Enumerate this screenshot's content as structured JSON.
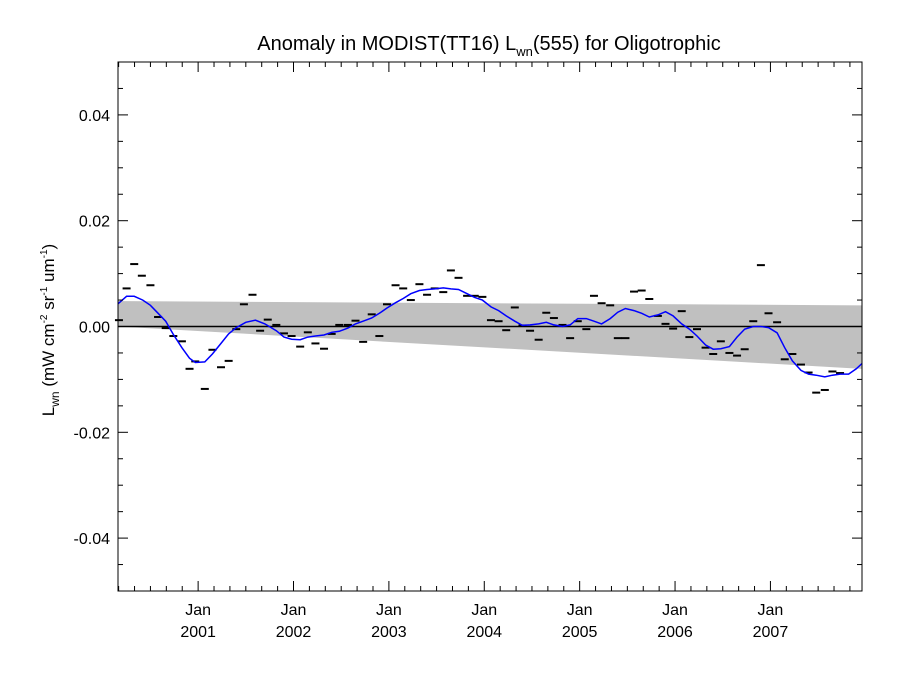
{
  "chart_data": {
    "type": "scatter",
    "title": {
      "main": "Anomaly in MODIST(TT16) L",
      "sub": "wn",
      "rest": "(555) for Oligotrophic"
    },
    "ylabel": {
      "main": "L",
      "sub": "wn",
      "units_pre": " (mW cm",
      "sup1": "-2",
      "units_mid": " sr",
      "sup2": "-1",
      "units_mid2": " um",
      "sup3": "-1",
      "units_post": ")"
    },
    "xlim": [
      2000.16,
      2007.96
    ],
    "ylim": [
      -0.05,
      0.05
    ],
    "y_ticks": [
      0.04,
      0.02,
      0.0,
      -0.02,
      -0.04
    ],
    "y_tick_labels": [
      "0.04",
      "0.02",
      "0.00",
      "-0.02",
      "-0.04"
    ],
    "x_ticks": [
      {
        "x": 2001.0,
        "month": "Jan",
        "year": "2001"
      },
      {
        "x": 2002.0,
        "month": "Jan",
        "year": "2002"
      },
      {
        "x": 2003.0,
        "month": "Jan",
        "year": "2003"
      },
      {
        "x": 2004.0,
        "month": "Jan",
        "year": "2004"
      },
      {
        "x": 2005.0,
        "month": "Jan",
        "year": "2005"
      },
      {
        "x": 2006.0,
        "month": "Jan",
        "year": "2006"
      },
      {
        "x": 2007.0,
        "month": "Jan",
        "year": "2007"
      }
    ],
    "grid": false,
    "zero_line": true,
    "uncertainty_band": {
      "x": [
        2000.16,
        2007.96
      ],
      "upper": [
        0.0048,
        0.004
      ],
      "lower": [
        0.0,
        -0.008
      ]
    },
    "series": [
      {
        "kind": "markers",
        "marker": "dash",
        "color": "#000000",
        "points": [
          [
            2000.17,
            0.0012
          ],
          [
            2000.25,
            0.0072
          ],
          [
            2000.33,
            0.0118
          ],
          [
            2000.41,
            0.0096
          ],
          [
            2000.5,
            0.0078
          ],
          [
            2000.58,
            0.0018
          ],
          [
            2000.66,
            -0.0003
          ],
          [
            2000.74,
            -0.0018
          ],
          [
            2000.83,
            -0.0028
          ],
          [
            2000.91,
            -0.008
          ],
          [
            2000.97,
            -0.0066
          ],
          [
            2001.07,
            -0.0118
          ],
          [
            2001.15,
            -0.0044
          ],
          [
            2001.24,
            -0.0077
          ],
          [
            2001.32,
            -0.0065
          ],
          [
            2001.4,
            -0.0005
          ],
          [
            2001.48,
            0.0042
          ],
          [
            2001.57,
            0.006
          ],
          [
            2001.65,
            -0.0008
          ],
          [
            2001.73,
            0.0013
          ],
          [
            2001.82,
            0.0003
          ],
          [
            2001.9,
            -0.0013
          ],
          [
            2001.98,
            -0.0018
          ],
          [
            2002.07,
            -0.0038
          ],
          [
            2002.15,
            -0.0011
          ],
          [
            2002.23,
            -0.0032
          ],
          [
            2002.32,
            -0.0042
          ],
          [
            2002.4,
            -0.0014
          ],
          [
            2002.48,
            0.0003
          ],
          [
            2002.57,
            0.0003
          ],
          [
            2002.65,
            0.0011
          ],
          [
            2002.73,
            -0.0029
          ],
          [
            2002.82,
            0.0023
          ],
          [
            2002.9,
            -0.0018
          ],
          [
            2002.98,
            0.0042
          ],
          [
            2003.07,
            0.0078
          ],
          [
            2003.15,
            0.0072
          ],
          [
            2003.23,
            0.005
          ],
          [
            2003.32,
            0.008
          ],
          [
            2003.4,
            0.006
          ],
          [
            2003.48,
            0.0072
          ],
          [
            2003.57,
            0.0065
          ],
          [
            2003.65,
            0.0106
          ],
          [
            2003.73,
            0.0092
          ],
          [
            2003.82,
            0.0058
          ],
          [
            2003.9,
            0.0058
          ],
          [
            2003.98,
            0.0056
          ],
          [
            2004.07,
            0.0012
          ],
          [
            2004.15,
            0.001
          ],
          [
            2004.23,
            -0.0007
          ],
          [
            2004.32,
            0.0036
          ],
          [
            2004.4,
            0.0002
          ],
          [
            2004.48,
            -0.0008
          ],
          [
            2004.57,
            -0.0025
          ],
          [
            2004.65,
            0.0026
          ],
          [
            2004.73,
            0.0016
          ],
          [
            2004.82,
            0.0003
          ],
          [
            2004.9,
            -0.0022
          ],
          [
            2004.98,
            0.001
          ],
          [
            2005.07,
            -0.0005
          ],
          [
            2005.15,
            0.0058
          ],
          [
            2005.23,
            0.0044
          ],
          [
            2005.32,
            0.004
          ],
          [
            2005.4,
            -0.0022
          ],
          [
            2005.48,
            -0.0022
          ],
          [
            2005.57,
            0.0066
          ],
          [
            2005.65,
            0.0068
          ],
          [
            2005.73,
            0.0052
          ],
          [
            2005.82,
            0.002
          ],
          [
            2005.9,
            0.0005
          ],
          [
            2005.98,
            -0.0004
          ],
          [
            2006.07,
            0.0029
          ],
          [
            2006.15,
            -0.002
          ],
          [
            2006.23,
            -0.0005
          ],
          [
            2006.32,
            -0.004
          ],
          [
            2006.4,
            -0.0052
          ],
          [
            2006.48,
            -0.0028
          ],
          [
            2006.57,
            -0.005
          ],
          [
            2006.65,
            -0.0055
          ],
          [
            2006.73,
            -0.0043
          ],
          [
            2006.82,
            0.001
          ],
          [
            2006.9,
            0.0116
          ],
          [
            2006.98,
            0.0025
          ],
          [
            2007.07,
            0.0008
          ],
          [
            2007.15,
            -0.0062
          ],
          [
            2007.23,
            -0.0052
          ],
          [
            2007.32,
            -0.0072
          ],
          [
            2007.4,
            -0.0087
          ],
          [
            2007.48,
            -0.0125
          ],
          [
            2007.57,
            -0.012
          ],
          [
            2007.65,
            -0.0085
          ],
          [
            2007.73,
            -0.0088
          ]
        ]
      },
      {
        "kind": "line",
        "color": "#0000ff",
        "points": [
          [
            2000.16,
            0.0043
          ],
          [
            2000.25,
            0.0057
          ],
          [
            2000.33,
            0.0057
          ],
          [
            2000.42,
            0.005
          ],
          [
            2000.5,
            0.004
          ],
          [
            2000.58,
            0.0025
          ],
          [
            2000.66,
            0.001
          ],
          [
            2000.74,
            -0.0015
          ],
          [
            2000.83,
            -0.004
          ],
          [
            2000.91,
            -0.006
          ],
          [
            2000.97,
            -0.0068
          ],
          [
            2001.07,
            -0.0067
          ],
          [
            2001.15,
            -0.0052
          ],
          [
            2001.24,
            -0.0032
          ],
          [
            2001.32,
            -0.0014
          ],
          [
            2001.4,
            -0.0002
          ],
          [
            2001.5,
            0.0008
          ],
          [
            2001.6,
            0.0012
          ],
          [
            2001.7,
            0.0005
          ],
          [
            2001.82,
            -0.0008
          ],
          [
            2001.9,
            -0.002
          ],
          [
            2001.98,
            -0.0024
          ],
          [
            2002.07,
            -0.0025
          ],
          [
            2002.15,
            -0.002
          ],
          [
            2002.23,
            -0.0018
          ],
          [
            2002.32,
            -0.0016
          ],
          [
            2002.4,
            -0.0011
          ],
          [
            2002.48,
            -0.0009
          ],
          [
            2002.57,
            -0.0003
          ],
          [
            2002.65,
            0.0005
          ],
          [
            2002.73,
            0.001
          ],
          [
            2002.82,
            0.0016
          ],
          [
            2002.9,
            0.0025
          ],
          [
            2002.98,
            0.0035
          ],
          [
            2003.07,
            0.0045
          ],
          [
            2003.15,
            0.0053
          ],
          [
            2003.23,
            0.0062
          ],
          [
            2003.32,
            0.0068
          ],
          [
            2003.4,
            0.007
          ],
          [
            2003.48,
            0.0071
          ],
          [
            2003.57,
            0.0073
          ],
          [
            2003.65,
            0.0071
          ],
          [
            2003.73,
            0.007
          ],
          [
            2003.82,
            0.0062
          ],
          [
            2003.9,
            0.0055
          ],
          [
            2003.98,
            0.005
          ],
          [
            2004.07,
            0.0037
          ],
          [
            2004.15,
            0.003
          ],
          [
            2004.23,
            0.002
          ],
          [
            2004.32,
            0.001
          ],
          [
            2004.4,
            0.0002
          ],
          [
            2004.48,
            0.0003
          ],
          [
            2004.57,
            0.0005
          ],
          [
            2004.65,
            0.0008
          ],
          [
            2004.73,
            0.0003
          ],
          [
            2004.82,
            0.0
          ],
          [
            2004.9,
            0.0003
          ],
          [
            2004.98,
            0.0015
          ],
          [
            2005.07,
            0.0015
          ],
          [
            2005.15,
            0.001
          ],
          [
            2005.23,
            0.0005
          ],
          [
            2005.32,
            0.0015
          ],
          [
            2005.4,
            0.0027
          ],
          [
            2005.48,
            0.0034
          ],
          [
            2005.57,
            0.003
          ],
          [
            2005.65,
            0.0025
          ],
          [
            2005.73,
            0.0018
          ],
          [
            2005.82,
            0.0022
          ],
          [
            2005.9,
            0.0028
          ],
          [
            2005.98,
            0.002
          ],
          [
            2006.07,
            0.0005
          ],
          [
            2006.15,
            -0.0005
          ],
          [
            2006.23,
            -0.0018
          ],
          [
            2006.32,
            -0.0035
          ],
          [
            2006.4,
            -0.0043
          ],
          [
            2006.48,
            -0.0042
          ],
          [
            2006.57,
            -0.0038
          ],
          [
            2006.65,
            -0.002
          ],
          [
            2006.73,
            -0.0005
          ],
          [
            2006.82,
            0.0
          ],
          [
            2006.9,
            0.0
          ],
          [
            2006.98,
            -0.0002
          ],
          [
            2007.07,
            -0.0012
          ],
          [
            2007.15,
            -0.004
          ],
          [
            2007.23,
            -0.0065
          ],
          [
            2007.32,
            -0.0083
          ],
          [
            2007.4,
            -0.009
          ],
          [
            2007.48,
            -0.0092
          ],
          [
            2007.57,
            -0.0095
          ],
          [
            2007.65,
            -0.0092
          ],
          [
            2007.73,
            -0.009
          ],
          [
            2007.82,
            -0.009
          ],
          [
            2007.9,
            -0.008
          ],
          [
            2007.96,
            -0.007
          ]
        ]
      }
    ]
  }
}
